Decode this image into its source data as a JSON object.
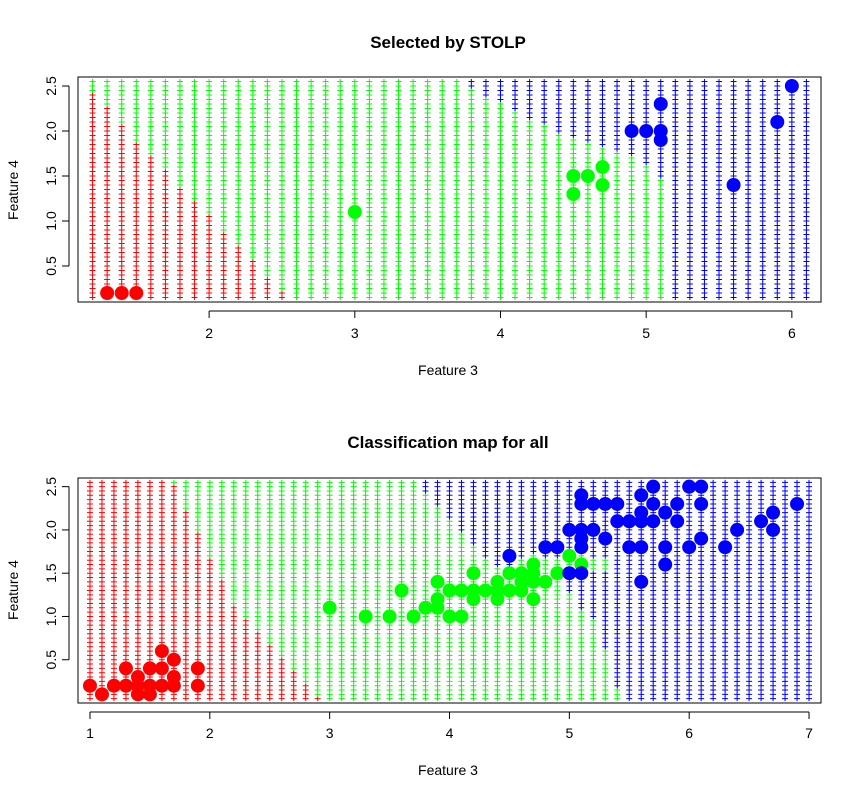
{
  "chart_data": [
    {
      "type": "scatter",
      "title": "Selected by STOLP",
      "xlabel": "Feature 3",
      "ylabel": "Feature 4",
      "xlim": [
        1.1,
        6.2
      ],
      "ylim": [
        0.1,
        2.6
      ],
      "xticks": [
        "2",
        "3",
        "4",
        "5",
        "6"
      ],
      "yticks": [
        "0.5",
        "1.0",
        "1.5",
        "2.0",
        "2.5"
      ],
      "background": "classification map of '+' markers colored by predicted class",
      "classes": [
        {
          "color": "#ff0000"
        },
        {
          "color": "#00ff00"
        },
        {
          "color": "#0000ff"
        }
      ],
      "series": [
        {
          "color": "#ff0000",
          "points": [
            [
              1.3,
              0.2
            ],
            [
              1.4,
              0.2
            ],
            [
              1.5,
              0.2
            ]
          ]
        },
        {
          "color": "#00ff00",
          "points": [
            [
              3.0,
              1.1
            ],
            [
              4.5,
              1.5
            ],
            [
              4.5,
              1.3
            ],
            [
              4.6,
              1.5
            ],
            [
              4.7,
              1.6
            ],
            [
              4.7,
              1.4
            ]
          ]
        },
        {
          "color": "#0000ff",
          "points": [
            [
              4.9,
              2.0
            ],
            [
              5.0,
              2.0
            ],
            [
              5.1,
              2.0
            ],
            [
              5.1,
              2.3
            ],
            [
              5.1,
              1.9
            ],
            [
              5.6,
              1.4
            ],
            [
              5.9,
              2.1
            ],
            [
              6.0,
              2.5
            ]
          ]
        }
      ]
    },
    {
      "type": "scatter",
      "title": "Classification map for all",
      "xlabel": "Feature 3",
      "ylabel": "Feature 4",
      "xlim": [
        0.9,
        7.1
      ],
      "ylim": [
        0.0,
        2.6
      ],
      "xticks": [
        "1",
        "2",
        "3",
        "4",
        "5",
        "6",
        "7"
      ],
      "yticks": [
        "0.5",
        "1.0",
        "1.5",
        "2.0",
        "2.5"
      ],
      "background": "classification map of '+' markers colored by predicted class",
      "series": [
        {
          "color": "#ff0000",
          "points": [
            [
              1.0,
              0.2
            ],
            [
              1.1,
              0.1
            ],
            [
              1.2,
              0.2
            ],
            [
              1.3,
              0.4
            ],
            [
              1.3,
              0.2
            ],
            [
              1.4,
              0.3
            ],
            [
              1.4,
              0.2
            ],
            [
              1.4,
              0.1
            ],
            [
              1.5,
              0.4
            ],
            [
              1.5,
              0.2
            ],
            [
              1.5,
              0.1
            ],
            [
              1.6,
              0.6
            ],
            [
              1.6,
              0.4
            ],
            [
              1.6,
              0.2
            ],
            [
              1.7,
              0.5
            ],
            [
              1.7,
              0.3
            ],
            [
              1.7,
              0.2
            ],
            [
              1.9,
              0.4
            ],
            [
              1.9,
              0.2
            ]
          ]
        },
        {
          "color": "#00ff00",
          "points": [
            [
              3.0,
              1.1
            ],
            [
              3.3,
              1.0
            ],
            [
              3.5,
              1.0
            ],
            [
              3.6,
              1.3
            ],
            [
              3.7,
              1.0
            ],
            [
              3.8,
              1.1
            ],
            [
              3.9,
              1.1
            ],
            [
              3.9,
              1.2
            ],
            [
              3.9,
              1.4
            ],
            [
              4.0,
              1.0
            ],
            [
              4.0,
              1.3
            ],
            [
              4.1,
              1.0
            ],
            [
              4.1,
              1.3
            ],
            [
              4.2,
              1.2
            ],
            [
              4.2,
              1.3
            ],
            [
              4.2,
              1.5
            ],
            [
              4.3,
              1.3
            ],
            [
              4.4,
              1.2
            ],
            [
              4.4,
              1.3
            ],
            [
              4.4,
              1.4
            ],
            [
              4.5,
              1.3
            ],
            [
              4.5,
              1.5
            ],
            [
              4.6,
              1.3
            ],
            [
              4.6,
              1.4
            ],
            [
              4.6,
              1.5
            ],
            [
              4.7,
              1.2
            ],
            [
              4.7,
              1.4
            ],
            [
              4.7,
              1.5
            ],
            [
              4.7,
              1.6
            ],
            [
              4.8,
              1.4
            ],
            [
              4.9,
              1.5
            ],
            [
              5.0,
              1.7
            ],
            [
              5.1,
              1.6
            ]
          ]
        },
        {
          "color": "#0000ff",
          "points": [
            [
              4.5,
              1.7
            ],
            [
              4.8,
              1.8
            ],
            [
              4.9,
              1.8
            ],
            [
              5.0,
              1.5
            ],
            [
              5.0,
              2.0
            ],
            [
              5.1,
              1.5
            ],
            [
              5.1,
              1.8
            ],
            [
              5.1,
              1.9
            ],
            [
              5.1,
              2.0
            ],
            [
              5.1,
              2.3
            ],
            [
              5.1,
              2.4
            ],
            [
              5.2,
              2.0
            ],
            [
              5.2,
              2.3
            ],
            [
              5.3,
              1.9
            ],
            [
              5.3,
              2.3
            ],
            [
              5.4,
              2.1
            ],
            [
              5.4,
              2.3
            ],
            [
              5.5,
              1.8
            ],
            [
              5.5,
              2.1
            ],
            [
              5.6,
              1.4
            ],
            [
              5.6,
              1.8
            ],
            [
              5.6,
              2.1
            ],
            [
              5.6,
              2.2
            ],
            [
              5.6,
              2.4
            ],
            [
              5.7,
              2.1
            ],
            [
              5.7,
              2.3
            ],
            [
              5.7,
              2.5
            ],
            [
              5.8,
              1.6
            ],
            [
              5.8,
              1.8
            ],
            [
              5.8,
              2.2
            ],
            [
              5.9,
              2.1
            ],
            [
              5.9,
              2.3
            ],
            [
              6.0,
              1.8
            ],
            [
              6.0,
              2.5
            ],
            [
              6.1,
              1.9
            ],
            [
              6.1,
              2.3
            ],
            [
              6.1,
              2.5
            ],
            [
              6.3,
              1.8
            ],
            [
              6.4,
              2.0
            ],
            [
              6.6,
              2.1
            ],
            [
              6.7,
              2.0
            ],
            [
              6.7,
              2.2
            ],
            [
              6.9,
              2.3
            ]
          ]
        }
      ]
    }
  ],
  "colors": {
    "red": "#ff0000",
    "green": "#00ff00",
    "blue": "#0000ff"
  }
}
